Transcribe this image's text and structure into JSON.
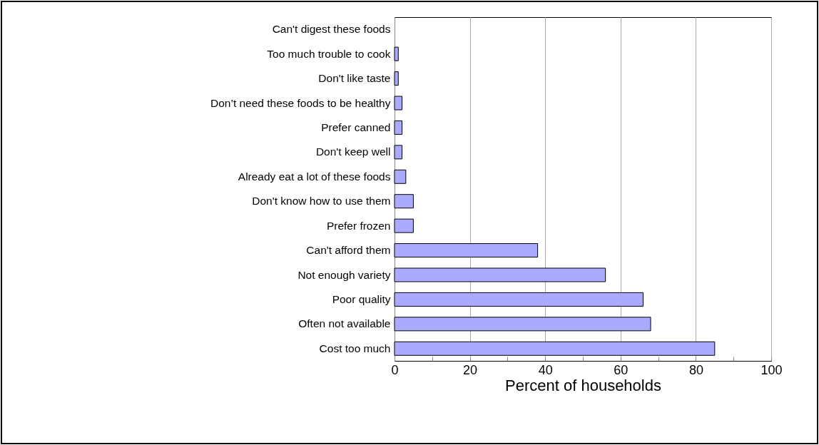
{
  "chart_data": {
    "type": "bar",
    "orientation": "horizontal",
    "xlabel": "Percent of households",
    "categories": [
      "Can't digest these foods",
      "Too much trouble to cook",
      "Don't like taste",
      "Don’t need these foods to be healthy",
      "Prefer canned",
      "Don't keep well",
      "Already eat a lot of these foods",
      "Don't know how to use them",
      "Prefer frozen",
      "Can't afford them",
      "Not enough variety",
      "Poor quality",
      "Often not available",
      "Cost too much"
    ],
    "values": [
      0,
      1,
      1,
      2,
      2,
      2,
      3,
      5,
      5,
      38,
      56,
      66,
      68,
      85
    ],
    "color": "#aaaaff",
    "xlim": [
      0,
      100
    ],
    "xticks": [
      0,
      {
        "value": 10,
        "label": null
      },
      20,
      {
        "value": 30,
        "label": null
      },
      40,
      {
        "value": 50,
        "label": null
      },
      60,
      {
        "value": 70,
        "label": null
      },
      80,
      {
        "value": 90,
        "label": null
      },
      100
    ],
    "grid": "x"
  }
}
